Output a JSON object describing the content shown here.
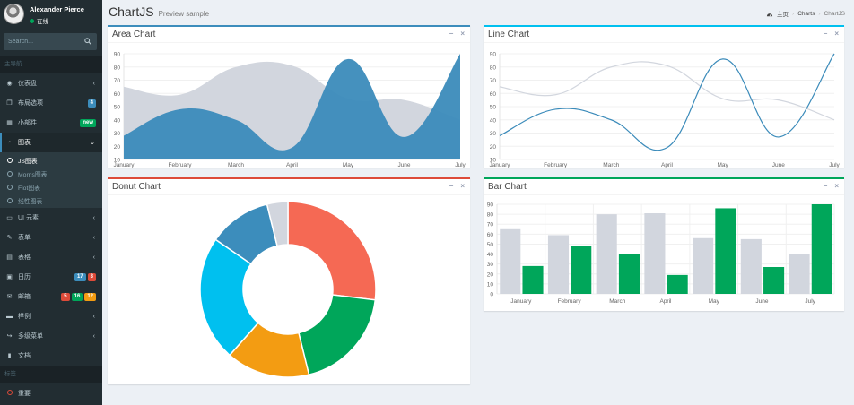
{
  "user": {
    "name": "Alexander Pierce",
    "status": "在线"
  },
  "search": {
    "placeholder": "Search..."
  },
  "nav": {
    "header_main": "主导航",
    "header_labels": "标签",
    "items": {
      "dashboard": "仪表盘",
      "layout": "布局选项",
      "widgets": "小部件",
      "charts": "图表",
      "ui": "UI 元素",
      "forms": "表单",
      "tables": "表格",
      "calendar": "日历",
      "mailbox": "邮箱",
      "examples": "样例",
      "multilevel": "多级菜单",
      "docs": "文档",
      "important": "重要"
    },
    "charts_sub": [
      "JS图表",
      "Morris图表",
      "Flot图表",
      "线性图表"
    ],
    "badges": {
      "layout": "4",
      "widgets": "new",
      "calendar": [
        "17",
        "3"
      ],
      "mailbox": [
        "5",
        "16",
        "12"
      ]
    }
  },
  "page": {
    "title": "ChartJS",
    "subtitle": "Preview sample"
  },
  "breadcrumb": [
    "主页",
    "Charts",
    "ChartJS"
  ],
  "boxes": {
    "area": "Area Chart",
    "line": "Line Chart",
    "donut": "Donut Chart",
    "bar": "Bar Chart",
    "collapse": "−",
    "remove": "×"
  },
  "colors": {
    "primary": "#3c8dbc",
    "info": "#00c0ef",
    "danger": "#dd4b39",
    "success": "#00a65a",
    "gray_series": "#d2d6de"
  },
  "chart_data": [
    {
      "type": "area",
      "categories": [
        "January",
        "February",
        "March",
        "April",
        "May",
        "June",
        "July"
      ],
      "ylim": [
        10,
        90
      ],
      "yticks": [
        10,
        20,
        30,
        40,
        50,
        60,
        70,
        80,
        90
      ],
      "series": [
        {
          "values": [
            65,
            59,
            80,
            81,
            56,
            55,
            40
          ],
          "color": "#d2d6de"
        },
        {
          "values": [
            28,
            48,
            40,
            19,
            86,
            27,
            90
          ],
          "color": "#3b8bba"
        }
      ]
    },
    {
      "type": "line",
      "categories": [
        "January",
        "February",
        "March",
        "April",
        "May",
        "June",
        "July"
      ],
      "ylim": [
        10,
        90
      ],
      "yticks": [
        10,
        20,
        30,
        40,
        50,
        60,
        70,
        80,
        90
      ],
      "series": [
        {
          "values": [
            65,
            59,
            80,
            81,
            56,
            55,
            40
          ],
          "color": "#d2d6de"
        },
        {
          "values": [
            28,
            48,
            40,
            19,
            86,
            27,
            90
          ],
          "color": "#3b8bba"
        }
      ]
    },
    {
      "type": "pie",
      "values": [
        700,
        500,
        400,
        600,
        300,
        100
      ],
      "colors": [
        "#f56954",
        "#00a65a",
        "#f39c12",
        "#00c0ef",
        "#3c8dbc",
        "#d2d6de"
      ]
    },
    {
      "type": "bar",
      "categories": [
        "January",
        "February",
        "March",
        "April",
        "May",
        "June",
        "July"
      ],
      "ylim": [
        0,
        90
      ],
      "yticks": [
        0,
        10,
        20,
        30,
        40,
        50,
        60,
        70,
        80,
        90
      ],
      "series": [
        {
          "values": [
            65,
            59,
            80,
            81,
            56,
            55,
            40
          ],
          "color": "#d2d6de"
        },
        {
          "values": [
            28,
            48,
            40,
            19,
            86,
            27,
            90
          ],
          "color": "#00a65a"
        }
      ]
    }
  ]
}
